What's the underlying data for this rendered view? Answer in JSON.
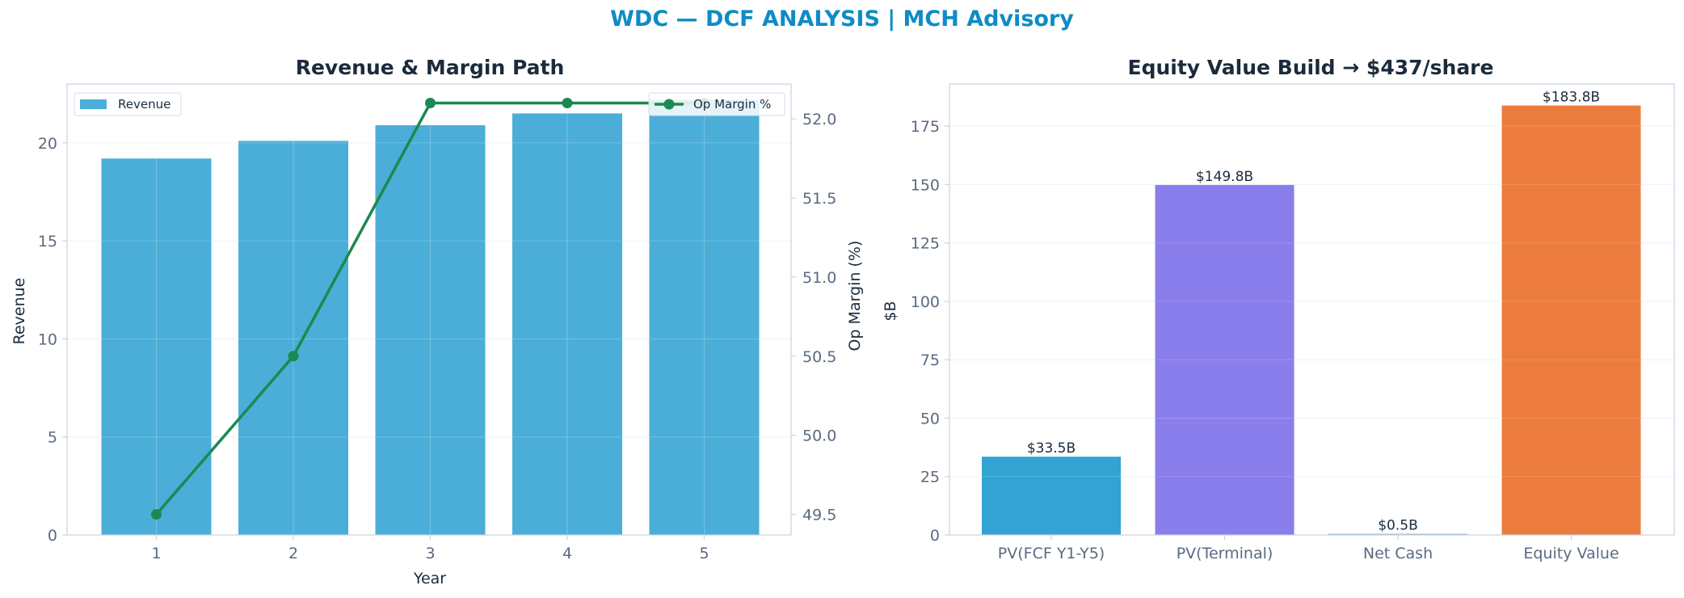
{
  "figure_title": "WDC — DCF ANALYSIS | MCH Advisory",
  "colors": {
    "title": "#0f8bc5",
    "text_dark": "#1c2b3c",
    "tick_text": "#5a6a80",
    "axis": "#c9d3e2",
    "grid": "#e9eef5",
    "revenue_bar": "#4aaed9",
    "margin_line": "#1a8a4f",
    "equity_bars": [
      "#32a3d3",
      "#8a7dec",
      "#9bb8cc",
      "#ec7c3e"
    ]
  },
  "chart_data": [
    {
      "type": "bar+line",
      "title": "Revenue & Margin Path",
      "xlabel": "Year",
      "ylabel": "Revenue",
      "y2label": "Op Margin (%)",
      "categories": [
        "1",
        "2",
        "3",
        "4",
        "5"
      ],
      "series": [
        {
          "name": "Revenue",
          "type": "bar",
          "axis": "left",
          "values": [
            19.2,
            20.1,
            20.9,
            21.5,
            22.2
          ]
        },
        {
          "name": "Op Margin %",
          "type": "line",
          "axis": "right",
          "values": [
            49.5,
            50.5,
            52.1,
            52.1,
            52.1
          ]
        }
      ],
      "ylim": [
        0,
        23
      ],
      "y2lim": [
        49.37,
        52.22
      ],
      "yticks": [
        "0",
        "5",
        "10",
        "15",
        "20"
      ],
      "y2ticks": [
        "49.5",
        "50.0",
        "50.5",
        "51.0",
        "51.5",
        "52.0"
      ],
      "grid": true,
      "legend": [
        "top-left",
        "top-right"
      ]
    },
    {
      "type": "bar",
      "title": "Equity Value Build → $437/share",
      "ylabel": "$B",
      "categories": [
        "PV(FCF Y1-Y5)",
        "PV(Terminal)",
        "Net Cash",
        "Equity Value"
      ],
      "values": [
        33.5,
        149.8,
        0.5,
        183.8
      ],
      "data_labels": [
        "$33.5B",
        "$149.8B",
        "$0.5B",
        "$183.8B"
      ],
      "ylim": [
        0,
        193
      ],
      "yticks": [
        "0",
        "25",
        "50",
        "75",
        "100",
        "125",
        "150",
        "175"
      ],
      "grid": true
    }
  ]
}
